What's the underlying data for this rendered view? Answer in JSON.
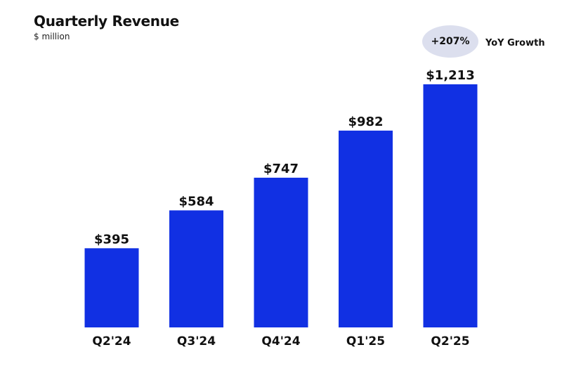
{
  "colors": {
    "bar": "#1130E3",
    "badge_bg": "#DCDFEE",
    "text": "#111111"
  },
  "header": {
    "title": "Quarterly Revenue",
    "subtitle": "$ million"
  },
  "growth": {
    "value": "+207%",
    "label": "YoY Growth"
  },
  "chart_data": {
    "type": "bar",
    "title": "Quarterly Revenue",
    "subtitle": "$ million",
    "categories": [
      "Q2'24",
      "Q3'24",
      "Q4'24",
      "Q1'25",
      "Q2'25"
    ],
    "values": [
      395,
      584,
      747,
      982,
      1213
    ],
    "data_labels": [
      "$395",
      "$584",
      "$747",
      "$982",
      "$1,213"
    ],
    "xlabel": "",
    "ylabel": "",
    "grid": false
  }
}
